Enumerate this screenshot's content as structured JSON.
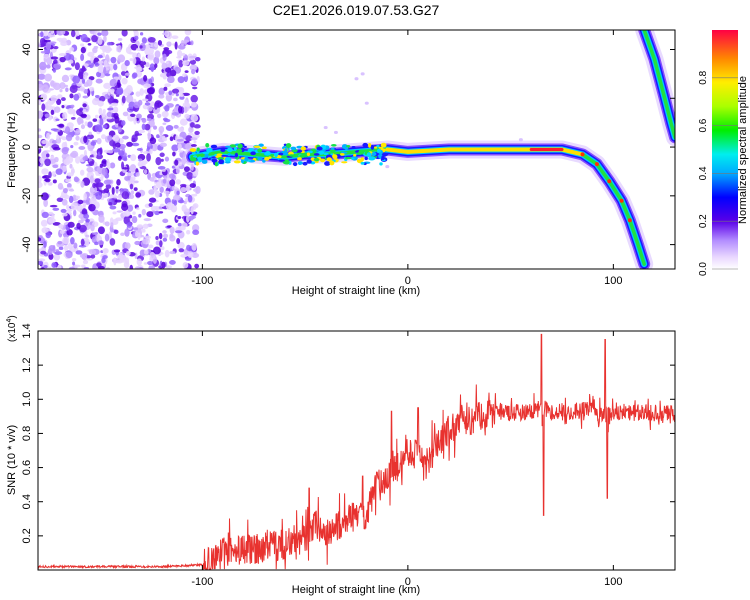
{
  "figure_title": "C2E1.2026.019.07.53.G27",
  "chart_data": [
    {
      "type": "heatmap",
      "title": "C2E1.2026.019.07.53.G27",
      "xlabel": "Height of straight line (km)",
      "ylabel": "Frequency (Hz)",
      "xlim": [
        -180,
        130
      ],
      "ylim": [
        -50,
        48
      ],
      "x_ticks": [
        -100,
        0,
        100
      ],
      "y_ticks": [
        -40,
        -20,
        0,
        20,
        40
      ],
      "x_tick_labels": [
        "-100",
        "0",
        "100"
      ],
      "y_tick_labels": [
        "-40",
        "-20",
        "0",
        "20",
        "40"
      ],
      "colorbar": {
        "label": "Normalized spectral amplitude",
        "range": [
          0,
          1
        ],
        "ticks": [
          0.0,
          0.2,
          0.4,
          0.6,
          0.8
        ],
        "tick_labels": [
          "0.0",
          "0.2",
          "0.4",
          "0.6",
          "0.8"
        ],
        "colormap": "rainbow"
      },
      "features": {
        "noise_region_x": [
          -180,
          -102
        ],
        "main_track": [
          {
            "x": -105,
            "y": -4
          },
          {
            "x": -90,
            "y": -2
          },
          {
            "x": -75,
            "y": -3
          },
          {
            "x": -60,
            "y": -4
          },
          {
            "x": -50,
            "y": -3
          },
          {
            "x": -40,
            "y": -3
          },
          {
            "x": -25,
            "y": -2
          },
          {
            "x": -10,
            "y": -1
          },
          {
            "x": 0,
            "y": -2
          },
          {
            "x": 20,
            "y": -1
          },
          {
            "x": 40,
            "y": -1
          },
          {
            "x": 60,
            "y": -1
          },
          {
            "x": 75,
            "y": -1
          },
          {
            "x": 85,
            "y": -3
          },
          {
            "x": 92,
            "y": -7
          },
          {
            "x": 98,
            "y": -14
          },
          {
            "x": 104,
            "y": -22
          },
          {
            "x": 108,
            "y": -30
          },
          {
            "x": 112,
            "y": -40
          },
          {
            "x": 115,
            "y": -48
          }
        ],
        "secondary_track": [
          {
            "x": 115,
            "y": 48
          },
          {
            "x": 120,
            "y": 36
          },
          {
            "x": 125,
            "y": 20
          },
          {
            "x": 128,
            "y": 10
          },
          {
            "x": 130,
            "y": 4
          }
        ]
      }
    },
    {
      "type": "line",
      "xlabel": "Height of straight line (km)",
      "ylabel": "SNR (10 * v/v)",
      "exponent_label": "(x10",
      "exponent_power": "4",
      "exponent_close": ")",
      "xlim": [
        -180,
        130
      ],
      "ylim": [
        0,
        1.4
      ],
      "x_ticks": [
        -100,
        0,
        100
      ],
      "y_ticks": [
        0.2,
        0.4,
        0.6,
        0.8,
        1.0,
        1.2,
        1.4
      ],
      "x_tick_labels": [
        "-100",
        "0",
        "100"
      ],
      "y_tick_labels": [
        "0.2",
        "0.4",
        "0.6",
        "0.8",
        "1.0",
        "1.2",
        "1.4"
      ],
      "series": [
        {
          "name": "SNR",
          "color": "#e8322f",
          "x": [
            -180,
            -150,
            -120,
            -100,
            -95,
            -90,
            -80,
            -70,
            -60,
            -50,
            -45,
            -40,
            -30,
            -20,
            -15,
            -10,
            -5,
            0,
            10,
            20,
            30,
            40,
            50,
            60,
            65,
            70,
            80,
            90,
            95,
            100,
            110,
            120,
            130
          ],
          "y": [
            0.02,
            0.02,
            0.02,
            0.03,
            0.05,
            0.1,
            0.12,
            0.13,
            0.15,
            0.18,
            0.28,
            0.2,
            0.3,
            0.33,
            0.5,
            0.55,
            0.6,
            0.7,
            0.65,
            0.82,
            0.88,
            0.93,
            0.92,
            0.93,
            0.95,
            0.93,
            0.92,
            0.95,
            0.9,
            0.93,
            0.92,
            0.92,
            0.92
          ]
        }
      ],
      "spikes": [
        {
          "x": -48,
          "y": 0.48
        },
        {
          "x": -22,
          "y": 0.55
        },
        {
          "x": -8,
          "y": 0.93
        },
        {
          "x": 5,
          "y": 0.95
        },
        {
          "x": 65,
          "y": 1.38
        },
        {
          "x": 66,
          "y": 0.32
        },
        {
          "x": 96,
          "y": 1.35
        },
        {
          "x": 97,
          "y": 0.42
        }
      ]
    }
  ]
}
